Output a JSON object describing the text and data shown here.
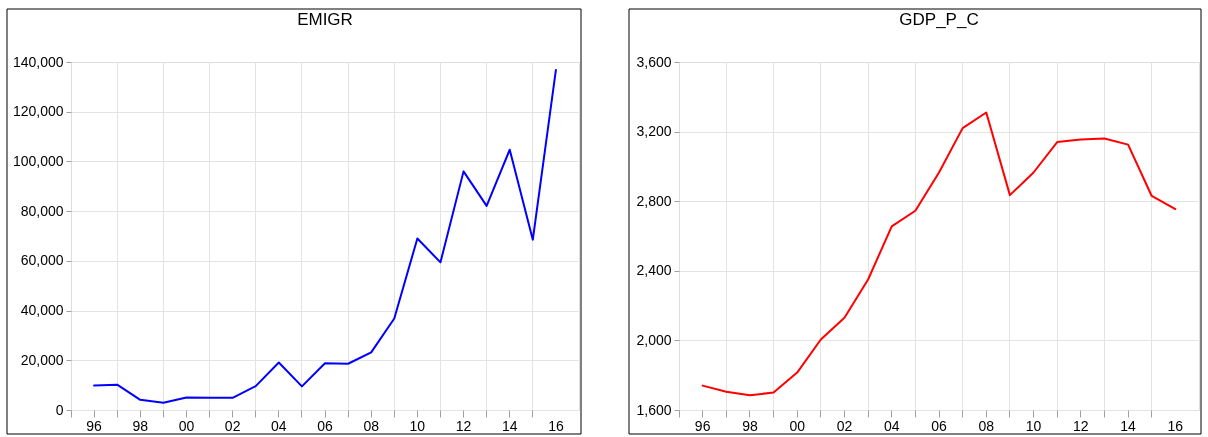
{
  "chart_data": [
    {
      "type": "line",
      "title": "EMIGR",
      "categories": [
        "96",
        null,
        "98",
        null,
        "00",
        null,
        "02",
        null,
        "04",
        null,
        "06",
        null,
        "08",
        null,
        "10",
        null,
        "12",
        null,
        "14",
        null,
        "16"
      ],
      "series": [
        {
          "color": "#0000ff",
          "values": [
            9900,
            10200,
            4100,
            2900,
            5000,
            4900,
            4900,
            9600,
            19100,
            9500,
            18800,
            18600,
            23200,
            36800,
            69000,
            59400,
            96000,
            82100,
            104700,
            68500,
            136800
          ]
        }
      ],
      "ylim": [
        0,
        140000
      ],
      "yticks": [
        0,
        {
          "value": 20000,
          "label": "20,000"
        },
        {
          "value": 40000,
          "label": "40,000"
        },
        {
          "value": 60000,
          "label": "60,000"
        },
        {
          "value": 80000,
          "label": "80,000"
        },
        {
          "value": 100000,
          "label": "100,000"
        },
        {
          "value": 120000,
          "label": "120,000"
        },
        {
          "value": 140000,
          "label": "140,000"
        }
      ],
      "grid": true
    },
    {
      "type": "line",
      "title": "GDP_P_C",
      "categories": [
        "96",
        null,
        "98",
        null,
        "00",
        null,
        "02",
        null,
        "04",
        null,
        "06",
        null,
        "08",
        null,
        "10",
        null,
        "12",
        null,
        "14",
        null,
        "16"
      ],
      "series": [
        {
          "color": "#ff0000",
          "values": [
            1740,
            1705,
            1685,
            1700,
            1815,
            2005,
            2130,
            2350,
            2655,
            2745,
            2965,
            3220,
            3310,
            2835,
            2965,
            3140,
            3155,
            3160,
            3125,
            2830,
            2755
          ]
        }
      ],
      "ylim": [
        1600,
        3600
      ],
      "yticks": [
        {
          "value": 1600,
          "label": "1,600"
        },
        {
          "value": 2000,
          "label": "2,000"
        },
        {
          "value": 2400,
          "label": "2,400"
        },
        {
          "value": 2800,
          "label": "2,800"
        },
        {
          "value": 3200,
          "label": "3,200"
        },
        {
          "value": 3600,
          "label": "3,600"
        }
      ],
      "grid": true
    }
  ]
}
